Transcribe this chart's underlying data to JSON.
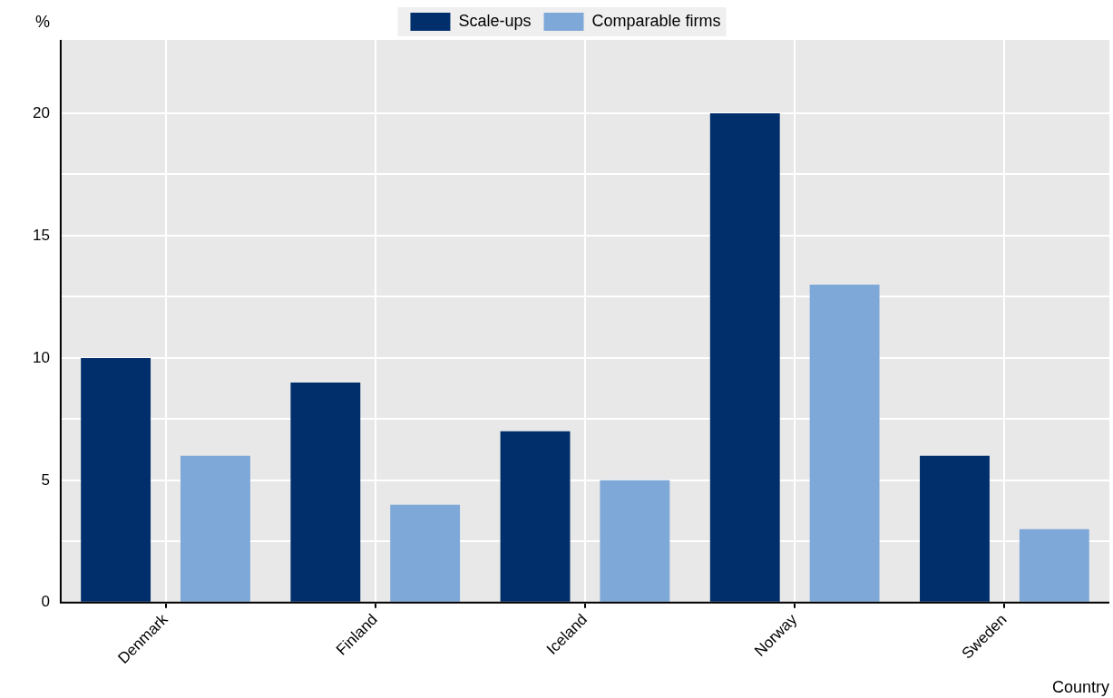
{
  "chart_data": {
    "type": "bar",
    "xlabel": "Country",
    "ylabel": "%",
    "categories": [
      "Denmark",
      "Finland",
      "Iceland",
      "Norway",
      "Sweden"
    ],
    "series": [
      {
        "name": "Scale-ups",
        "color": "#002f6c",
        "values": [
          10,
          9,
          7,
          20,
          6
        ]
      },
      {
        "name": "Comparable firms",
        "color": "#7ea8d8",
        "values": [
          6,
          4,
          5,
          13,
          3
        ]
      }
    ],
    "ylim": [
      0,
      23
    ],
    "yticks": [
      0,
      {
        "value": 2.5,
        "label": null
      },
      5,
      {
        "value": 7.5,
        "label": null
      },
      10,
      {
        "value": 12.5,
        "label": null
      },
      15,
      {
        "value": 17.5,
        "label": null
      },
      20
    ],
    "grid": true,
    "legend": "top"
  }
}
